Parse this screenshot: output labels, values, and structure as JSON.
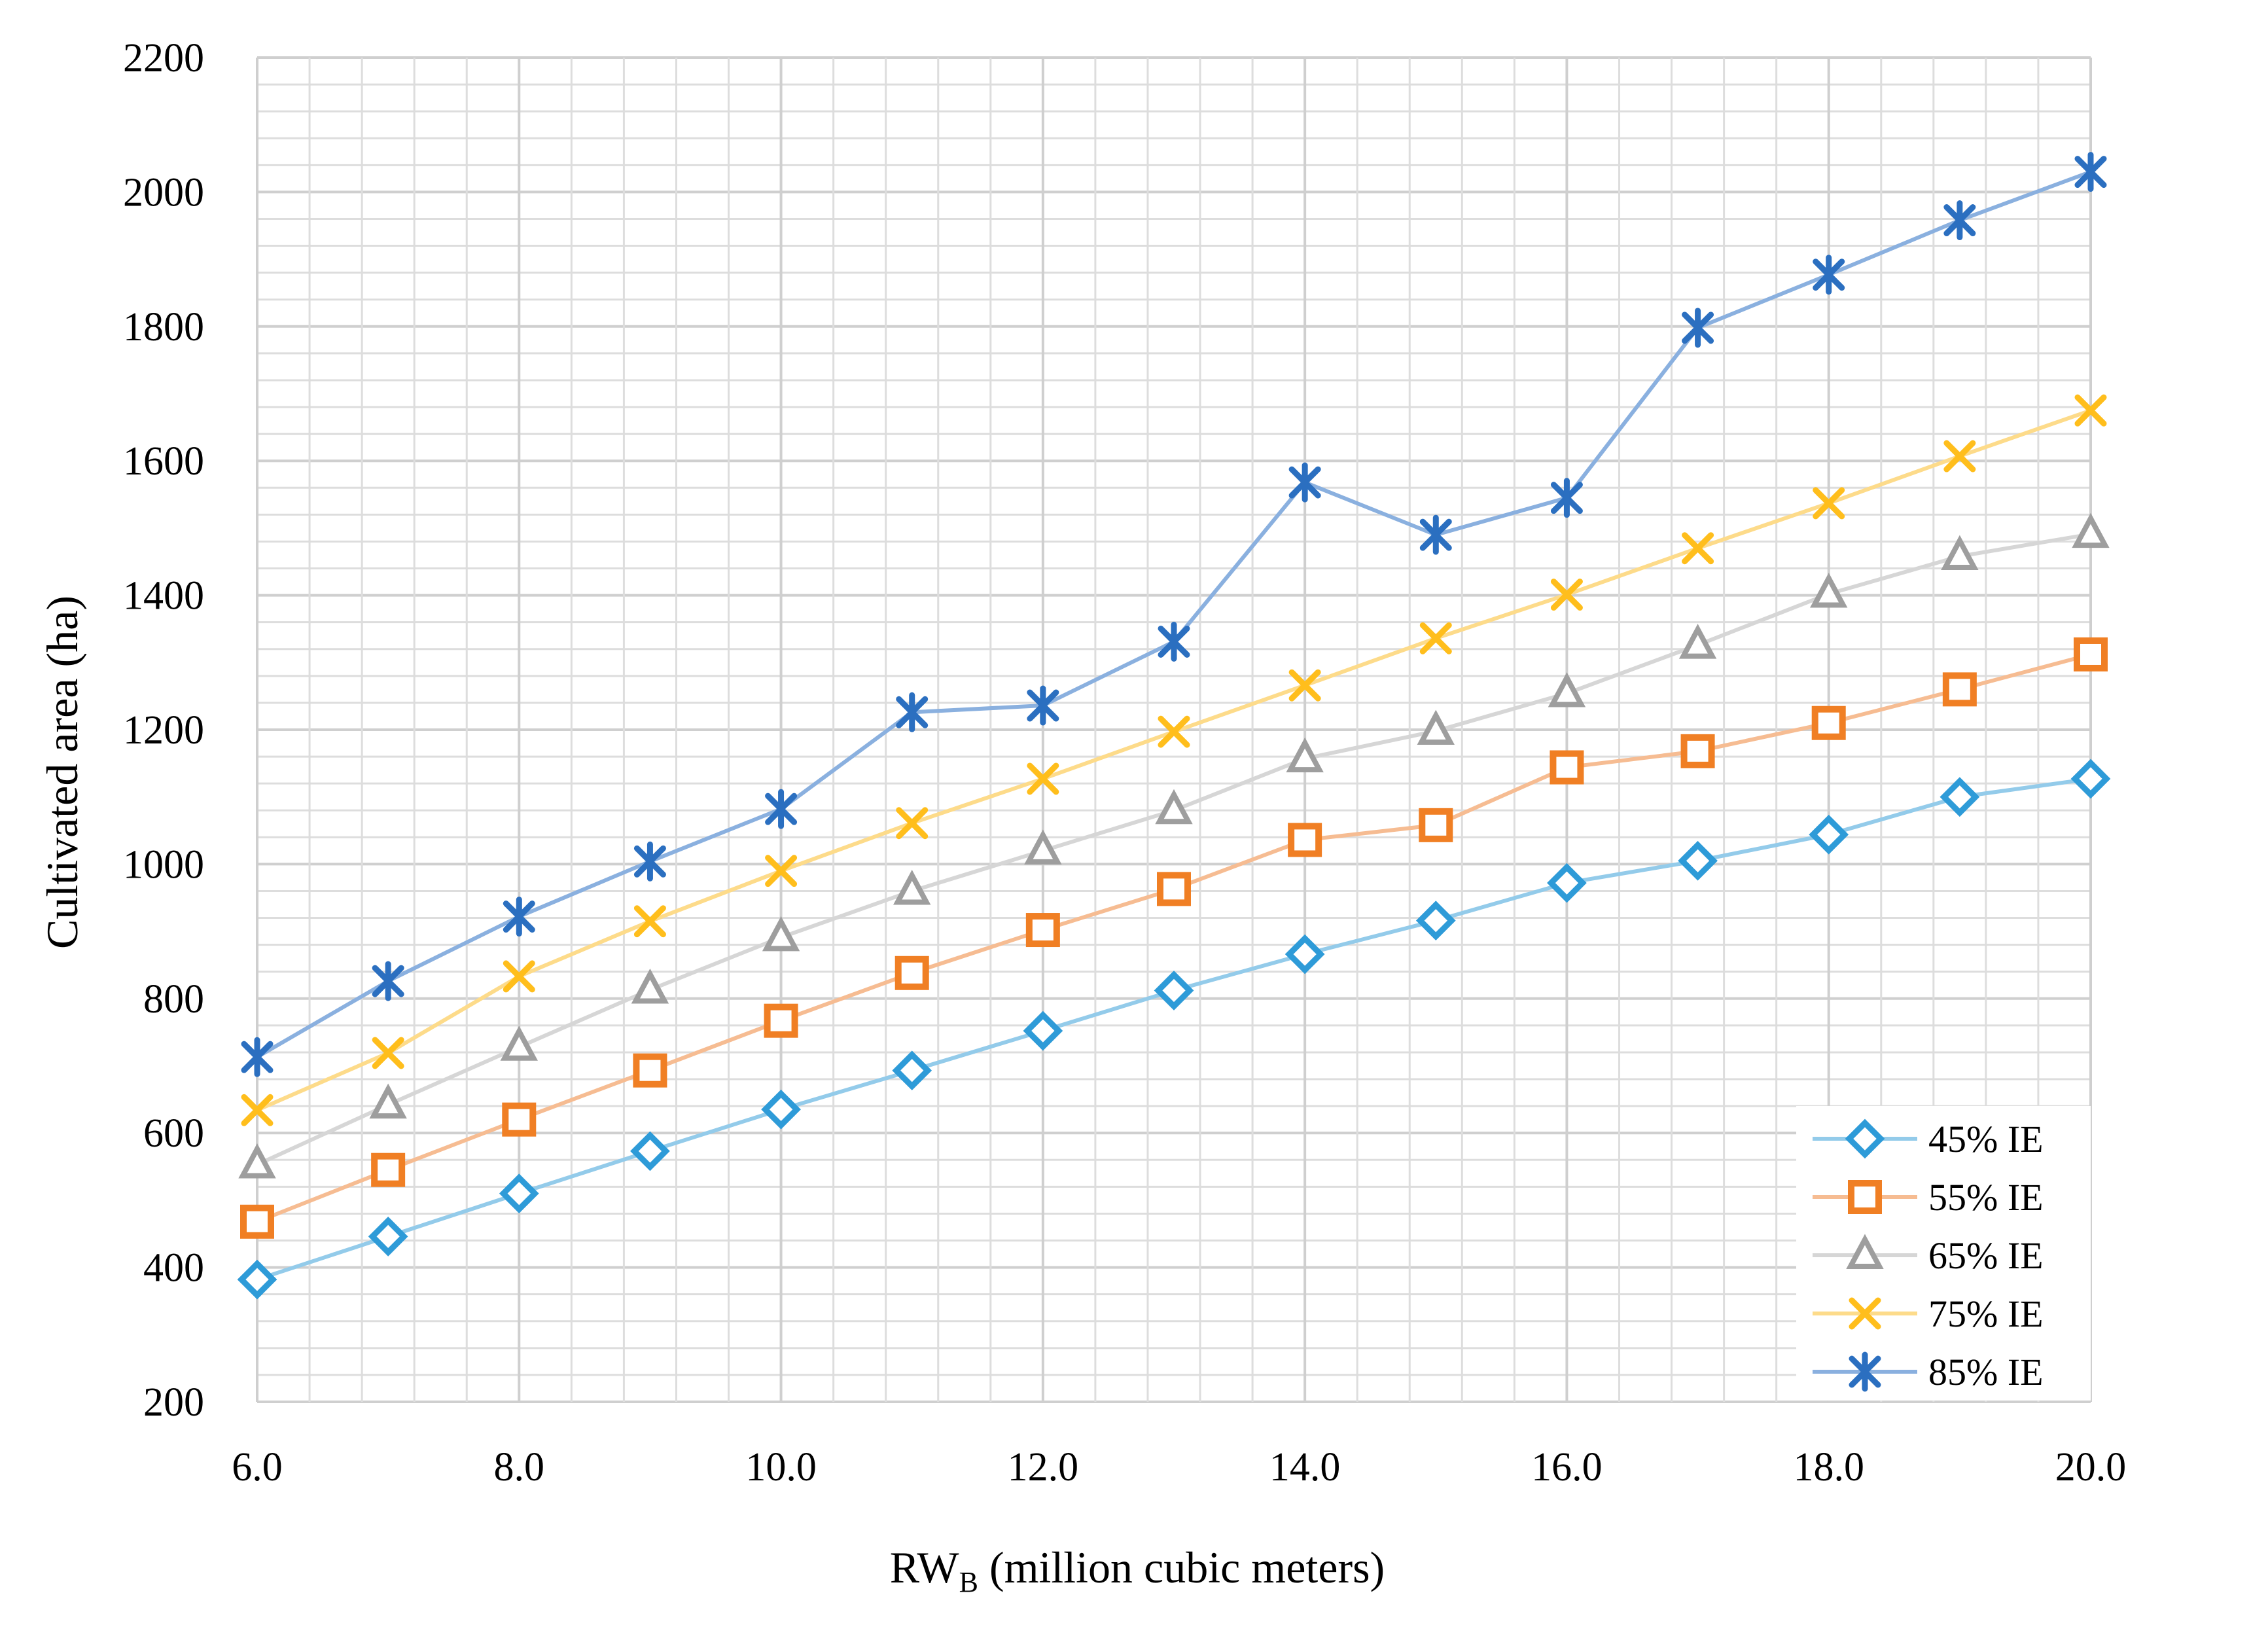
{
  "chart_data": {
    "type": "line",
    "title": "",
    "xlabel": "RW",
    "xlabel_subscript": "B",
    "xlabel_suffix": " (million cubic meters)",
    "ylabel": "Cultivated area (ha)",
    "xlim": [
      6,
      20
    ],
    "ylim": [
      200,
      2200
    ],
    "grid": true,
    "legend_position": "bottom-right",
    "x": [
      6,
      7,
      8,
      9,
      10,
      11,
      12,
      13,
      14,
      15,
      16,
      17,
      18,
      19,
      20
    ],
    "x_tick_labels": [
      "6.0",
      "8.0",
      "10.0",
      "12.0",
      "14.0",
      "16.0",
      "18.0",
      "20.0"
    ],
    "y_tick_labels": [
      "200",
      "400",
      "600",
      "800",
      "1000",
      "1200",
      "1400",
      "1600",
      "1800",
      "2000",
      "2200"
    ],
    "series": [
      {
        "name": "45% IE",
        "marker": "diamond",
        "color": "#2E9BD8",
        "line_color": "#93CBEA",
        "values": [
          382,
          446,
          510,
          573,
          635,
          693,
          752,
          812,
          866,
          916,
          972,
          1005,
          1044,
          1100,
          1127
        ]
      },
      {
        "name": "55% IE",
        "marker": "square",
        "color": "#F07F24",
        "line_color": "#F6BC92",
        "values": [
          468,
          545,
          620,
          693,
          767,
          838,
          902,
          963,
          1036,
          1058,
          1144,
          1168,
          1210,
          1260,
          1312
        ]
      },
      {
        "name": "65% IE",
        "marker": "triangle",
        "color": "#9E9E9E",
        "line_color": "#D6D6D6",
        "values": [
          553,
          642,
          728,
          813,
          891,
          960,
          1020,
          1080,
          1157,
          1198,
          1254,
          1326,
          1402,
          1458,
          1491
        ]
      },
      {
        "name": "75% IE",
        "marker": "x",
        "color": "#FFBE1C",
        "line_color": "#FDDB8A",
        "values": [
          634,
          719,
          833,
          915,
          990,
          1061,
          1127,
          1197,
          1266,
          1336,
          1401,
          1470,
          1537,
          1607,
          1675
        ]
      },
      {
        "name": "85% IE",
        "marker": "asterisk",
        "color": "#2B6FC0",
        "line_color": "#8AB0DF",
        "values": [
          713,
          826,
          922,
          1004,
          1082,
          1226,
          1236,
          1331,
          1568,
          1490,
          1545,
          1798,
          1877,
          1958,
          2030
        ]
      }
    ]
  }
}
